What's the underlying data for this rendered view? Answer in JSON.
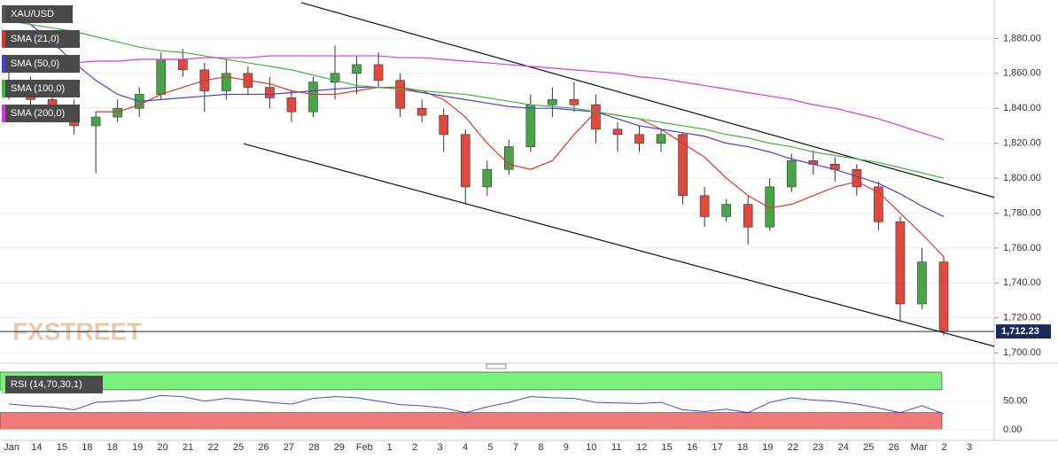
{
  "chart_data": {
    "type": "candlestick",
    "symbol": "XAU/USD",
    "watermark": "FXSTREET",
    "up_color": "#47a447",
    "down_color": "#e0493c",
    "candles": {
      "open": [
        1855,
        1848,
        1845,
        1840,
        1830,
        1835,
        1840,
        1848,
        1868,
        1862,
        1850,
        1860,
        1852,
        1846,
        1838,
        1855,
        1860,
        1865,
        1856,
        1840,
        1836,
        1825,
        1795,
        1805,
        1818,
        1842,
        1845,
        1842,
        1828,
        1825,
        1820,
        1825,
        1790,
        1778,
        1785,
        1772,
        1795,
        1810,
        1808,
        1805,
        1795,
        1775,
        1728,
        1752
      ],
      "high": [
        1862,
        1858,
        1852,
        1845,
        1838,
        1845,
        1852,
        1872,
        1874,
        1866,
        1868,
        1864,
        1858,
        1850,
        1858,
        1876,
        1870,
        1872,
        1860,
        1845,
        1840,
        1828,
        1810,
        1822,
        1848,
        1852,
        1855,
        1848,
        1832,
        1830,
        1828,
        1826,
        1795,
        1788,
        1790,
        1800,
        1814,
        1816,
        1812,
        1808,
        1798,
        1778,
        1760,
        1755
      ],
      "low": [
        1845,
        1838,
        1835,
        1825,
        1803,
        1832,
        1835,
        1845,
        1858,
        1838,
        1845,
        1848,
        1840,
        1832,
        1835,
        1845,
        1848,
        1852,
        1835,
        1832,
        1815,
        1785,
        1790,
        1802,
        1815,
        1835,
        1838,
        1820,
        1815,
        1815,
        1815,
        1785,
        1772,
        1775,
        1762,
        1770,
        1792,
        1802,
        1798,
        1790,
        1770,
        1718,
        1725,
        1710
      ],
      "close": [
        1848,
        1845,
        1840,
        1830,
        1835,
        1840,
        1848,
        1868,
        1862,
        1850,
        1860,
        1852,
        1846,
        1838,
        1855,
        1860,
        1865,
        1856,
        1840,
        1836,
        1825,
        1795,
        1805,
        1818,
        1842,
        1845,
        1842,
        1828,
        1825,
        1820,
        1825,
        1790,
        1778,
        1785,
        1772,
        1795,
        1810,
        1808,
        1805,
        1795,
        1775,
        1728,
        1752,
        1712.23
      ]
    },
    "series": [
      {
        "name": "SMA (21,0)",
        "color": "#e8302a",
        "values": [
          null,
          null,
          null,
          null,
          1838,
          1838,
          1842,
          1848,
          1852,
          1856,
          1858,
          1856,
          1854,
          1850,
          1848,
          1848,
          1850,
          1852,
          1852,
          1850,
          1845,
          1835,
          1820,
          1808,
          1805,
          1810,
          1825,
          1838,
          1836,
          1834,
          1828,
          1820,
          1812,
          1800,
          1790,
          1783,
          1785,
          1790,
          1795,
          1798,
          1792,
          1780,
          1768,
          1755
        ]
      },
      {
        "name": "SMA (50,0)",
        "color": "#4a3ee0",
        "values": [
          1897,
          1888,
          1878,
          1866,
          1856,
          1848,
          1844,
          1845,
          1846,
          1847,
          1848,
          1848,
          1848,
          1849,
          1850,
          1851,
          1852,
          1852,
          1851,
          1849,
          1847,
          1845,
          1843,
          1841,
          1840,
          1840,
          1839,
          1838,
          1834,
          1830,
          1828,
          1826,
          1824,
          1820,
          1818,
          1815,
          1811,
          1808,
          1805,
          1801,
          1797,
          1791,
          1784,
          1778
        ]
      },
      {
        "name": "SMA (100,0)",
        "color": "#3cb83c",
        "values": [
          1890,
          1888,
          1886,
          1884,
          1881,
          1878,
          1875,
          1873,
          1872,
          1870,
          1868,
          1866,
          1864,
          1862,
          1859,
          1856,
          1853,
          1852,
          1851,
          1850,
          1849,
          1848,
          1846,
          1844,
          1842,
          1841,
          1840,
          1838,
          1836,
          1834,
          1832,
          1830,
          1828,
          1825,
          1823,
          1820,
          1818,
          1815,
          1813,
          1811,
          1809,
          1806,
          1803,
          1800
        ]
      },
      {
        "name": "SMA (200,0)",
        "color": "#e033e0",
        "values": [
          1864,
          1865,
          1866,
          1866,
          1867,
          1867,
          1868,
          1868,
          1868,
          1869,
          1869,
          1869,
          1870,
          1870,
          1870,
          1870,
          1870,
          1870,
          1869,
          1869,
          1868,
          1867,
          1866,
          1865,
          1864,
          1863,
          1862,
          1861,
          1860,
          1858,
          1857,
          1855,
          1853,
          1851,
          1849,
          1847,
          1845,
          1842,
          1840,
          1837,
          1834,
          1830,
          1826,
          1822
        ]
      }
    ],
    "trendlines": [
      {
        "x": [
          13.45,
          45.33
        ],
        "y": [
          1900.5,
          1789
        ]
      },
      {
        "x": [
          10.8,
          45.33
        ],
        "y": [
          1819.7,
          1703.7
        ]
      }
    ],
    "last_price": {
      "value": 1712.23,
      "label": "1,712.23"
    },
    "ylim": [
      1694,
      1902
    ],
    "yticks": [
      {
        "value": 1700,
        "label": "1,700.00"
      },
      {
        "value": 1720,
        "label": "1,720.00"
      },
      {
        "value": 1740,
        "label": "1,740.00"
      },
      {
        "value": 1760,
        "label": "1,760.00"
      },
      {
        "value": 1780,
        "label": "1,780.00"
      },
      {
        "value": 1800,
        "label": "1,800.00"
      },
      {
        "value": 1820,
        "label": "1,820.00"
      },
      {
        "value": 1840,
        "label": "1,840.00"
      },
      {
        "value": 1860,
        "label": "1,860.00"
      },
      {
        "value": 1880,
        "label": "1,880.00"
      }
    ],
    "x_labels": [
      "Jan",
      "14",
      "15",
      "18",
      "18",
      "19",
      "20",
      "21",
      "22",
      "25",
      "26",
      "27",
      "28",
      "29",
      "Feb",
      "1",
      "2",
      "3",
      "4",
      "5",
      "7",
      "8",
      "9",
      "10",
      "11",
      "12",
      "15",
      "16",
      "17",
      "18",
      "19",
      "22",
      "23",
      "24",
      "25",
      "26",
      "Mar",
      "2",
      "3"
    ],
    "rsi": {
      "name": "RSI (14,70,30,1)",
      "color": "#3a4ed8",
      "overbought_color": "#7cf07c",
      "oversold_color": "#f07878",
      "levels": [
        70,
        30
      ],
      "values": [
        45,
        42,
        40,
        35,
        48,
        50,
        52,
        60,
        58,
        50,
        55,
        52,
        48,
        45,
        55,
        58,
        56,
        50,
        44,
        42,
        38,
        30,
        40,
        48,
        58,
        56,
        55,
        48,
        47,
        46,
        48,
        35,
        32,
        36,
        30,
        48,
        56,
        52,
        50,
        45,
        38,
        30,
        42,
        28
      ],
      "ylim": [
        0,
        104
      ],
      "yticks": [
        {
          "value": 0,
          "label": "0.00"
        },
        {
          "value": 50,
          "label": "50.00"
        }
      ]
    }
  }
}
